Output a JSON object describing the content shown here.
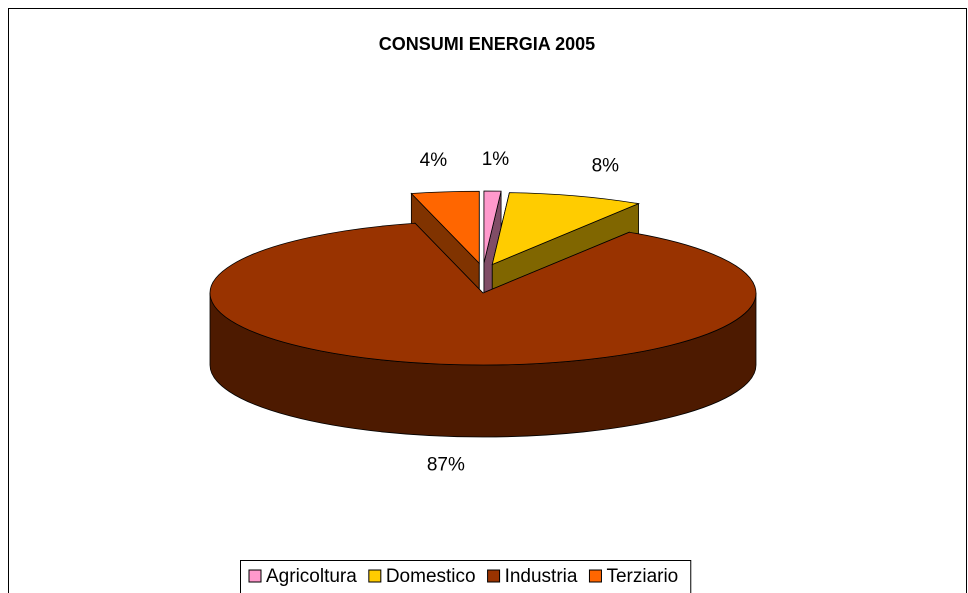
{
  "chart_data": {
    "type": "pie",
    "title": "CONSUMI ENERGIA 2005",
    "categories": [
      "Agricoltura",
      "Domestico",
      "Industria",
      "Terziario"
    ],
    "values": [
      1,
      8,
      87,
      4
    ],
    "value_labels": [
      "1%",
      "8%",
      "87%",
      "4%"
    ],
    "colors": [
      "#ff99cc",
      "#ffcc00",
      "#993300",
      "#ff6600"
    ],
    "legend": "bottom"
  }
}
